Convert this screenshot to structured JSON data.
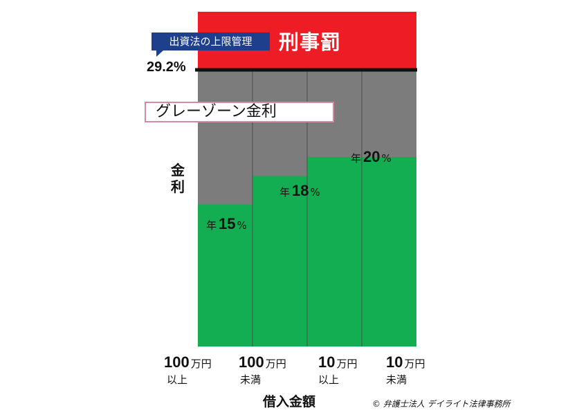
{
  "chart_data": {
    "type": "bar",
    "categories": [
      {
        "amount": "100",
        "unit": "万円",
        "qualifier": "以上"
      },
      {
        "amount": "100",
        "unit": "万円",
        "qualifier": "未満"
      },
      {
        "amount": "10",
        "unit": "万円",
        "qualifier": "以上"
      },
      {
        "amount": "10",
        "unit": "万円",
        "qualifier": "未満"
      }
    ],
    "series": [
      {
        "values": [
          15,
          18,
          20,
          20
        ]
      }
    ],
    "bar_labels": [
      {
        "prefix": "年",
        "value": "15",
        "suffix": "%"
      },
      {
        "prefix": "年",
        "value": "18",
        "suffix": "%"
      },
      {
        "prefix": "年",
        "value": "20",
        "suffix": "%"
      }
    ],
    "ylabel": "金利",
    "xlabel": "借入金額",
    "cap": {
      "value": 29.2,
      "label": "29.2%",
      "callout": "出資法の上限管理"
    },
    "zones": {
      "above_cap": "刑事罰",
      "grey": "グレーゾーン金利"
    },
    "colors": {
      "bar": "#13ad52",
      "grey": "#7c7c7c",
      "penalty": "#ee1c24",
      "callout": "#1d3f8c",
      "cap_line": "#111111"
    }
  },
  "credit": "© 弁護士法人 デイライト法律事務所"
}
